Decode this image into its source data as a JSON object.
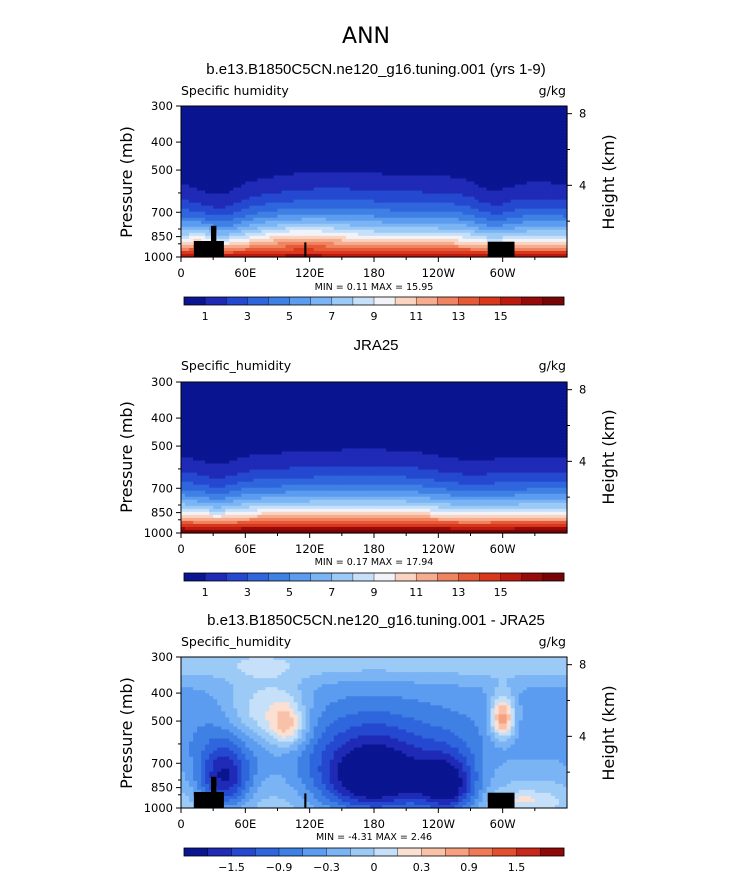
{
  "figure_title": "ANN",
  "colors": {
    "full_palette": [
      "#0a1591",
      "#1f2ab6",
      "#2448cf",
      "#2f66dd",
      "#3e80e4",
      "#5c9cf0",
      "#7ab4f4",
      "#9ccaf7",
      "#c6e0fa",
      "#f2f3f8",
      "#fad4c0",
      "#f6ad8f",
      "#f08461",
      "#e75a37",
      "#d9381d",
      "#bc1a0f",
      "#960a0a",
      "#780505"
    ],
    "diff_palette": [
      "#0a1591",
      "#1f2ab6",
      "#2448cf",
      "#2f66dd",
      "#3e80e4",
      "#5c9cf0",
      "#7ab4f4",
      "#9ccaf7",
      "#c6e0fa",
      "#fbe0d2",
      "#f9c2a8",
      "#f6a080",
      "#f07a55",
      "#e4502e",
      "#c7281a",
      "#900909"
    ],
    "land": "#000000"
  },
  "chart_data": [
    {
      "type": "heatmap",
      "title": "b.e13.B1850C5CN.ne120_g16.tuning.001 (yrs 1-9)",
      "left_label": "Specific humidity",
      "right_label": "g/kg",
      "ylabel": "Pressure (mb)",
      "right_axis_label": "Height (km)",
      "ylim": [
        1000,
        300
      ],
      "y_ticks": [
        "300",
        "400",
        "500",
        "700",
        "850",
        "1000"
      ],
      "right_ticks": [
        "8",
        "4"
      ],
      "x_ticks": [
        "0",
        "60E",
        "120E",
        "180",
        "120W",
        "60W"
      ],
      "xlim": [
        0,
        360
      ],
      "stats": "MIN =    0.11   MAX =   15.95",
      "colorbar_labels": [
        "1",
        "3",
        "5",
        "7",
        "9",
        "11",
        "13",
        "15"
      ],
      "colorbar_levels": [
        0,
        17
      ],
      "field": "model_q"
    },
    {
      "type": "heatmap",
      "title": "JRA25",
      "left_label": "Specific_humidity",
      "right_label": "g/kg",
      "ylabel": "Pressure (mb)",
      "right_axis_label": "Height (km)",
      "ylim": [
        1000,
        300
      ],
      "y_ticks": [
        "300",
        "400",
        "500",
        "700",
        "850",
        "1000"
      ],
      "right_ticks": [
        "8",
        "4"
      ],
      "x_ticks": [
        "0",
        "60E",
        "120E",
        "180",
        "120W",
        "60W"
      ],
      "xlim": [
        0,
        360
      ],
      "stats": "MIN =    0.17   MAX =   17.94",
      "colorbar_labels": [
        "1",
        "3",
        "5",
        "7",
        "9",
        "11",
        "13",
        "15"
      ],
      "colorbar_levels": [
        0,
        17
      ],
      "field": "obs_q"
    },
    {
      "type": "heatmap",
      "title": "b.e13.B1850C5CN.ne120_g16.tuning.001 - JRA25",
      "left_label": "Specific_humidity",
      "right_label": "g/kg",
      "ylabel": "Pressure (mb)",
      "right_axis_label": "Height (km)",
      "ylim": [
        1000,
        300
      ],
      "y_ticks": [
        "300",
        "400",
        "500",
        "700",
        "850",
        "1000"
      ],
      "right_ticks": [
        "8",
        "4"
      ],
      "x_ticks": [
        "0",
        "60E",
        "120E",
        "180",
        "120W",
        "60W"
      ],
      "xlim": [
        0,
        360
      ],
      "stats": "MIN =   -4.31   MAX =    2.46",
      "colorbar_labels": [
        "−1.5",
        "−0.9",
        "−0.3",
        "0",
        "0.3",
        "0.9",
        "1.5"
      ],
      "colorbar_levels": [
        -2.1,
        2.1
      ],
      "field": "diff_q"
    }
  ]
}
